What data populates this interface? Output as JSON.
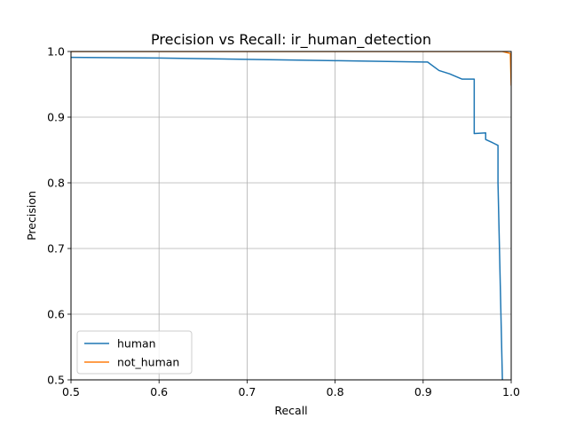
{
  "chart_data": {
    "type": "line",
    "title": "Precision vs Recall: ir_human_detection",
    "xlabel": "Recall",
    "ylabel": "Precision",
    "xlim": [
      0.5,
      1.0
    ],
    "ylim": [
      0.5,
      1.0
    ],
    "x_ticks": [
      "0.5",
      "0.6",
      "0.7",
      "0.8",
      "0.9",
      "1.0"
    ],
    "y_ticks": [
      "0.5",
      "0.6",
      "0.7",
      "0.8",
      "0.9",
      "1.0"
    ],
    "grid": true,
    "legend_position": "lower-left",
    "series": [
      {
        "name": "human",
        "color": "#1f77b4",
        "points": [
          [
            0.5,
            0.991
          ],
          [
            0.6,
            0.99
          ],
          [
            0.7,
            0.988
          ],
          [
            0.8,
            0.986
          ],
          [
            0.9,
            0.984
          ],
          [
            0.905,
            0.984
          ],
          [
            0.918,
            0.971
          ],
          [
            0.93,
            0.966
          ],
          [
            0.944,
            0.958
          ],
          [
            0.958,
            0.958
          ],
          [
            0.958,
            0.875
          ],
          [
            0.971,
            0.876
          ],
          [
            0.971,
            0.866
          ],
          [
            0.979,
            0.861
          ],
          [
            0.985,
            0.857
          ],
          [
            0.985,
            0.8
          ],
          [
            0.99,
            0.5
          ]
        ]
      },
      {
        "name": "not_human",
        "color": "#ff7f0e",
        "points": [
          [
            0.5,
            1.0
          ],
          [
            0.8,
            1.0
          ],
          [
            0.99,
            1.0
          ],
          [
            0.996,
            0.998
          ],
          [
            0.999,
            0.997
          ],
          [
            1.0,
            0.948
          ]
        ]
      }
    ]
  }
}
